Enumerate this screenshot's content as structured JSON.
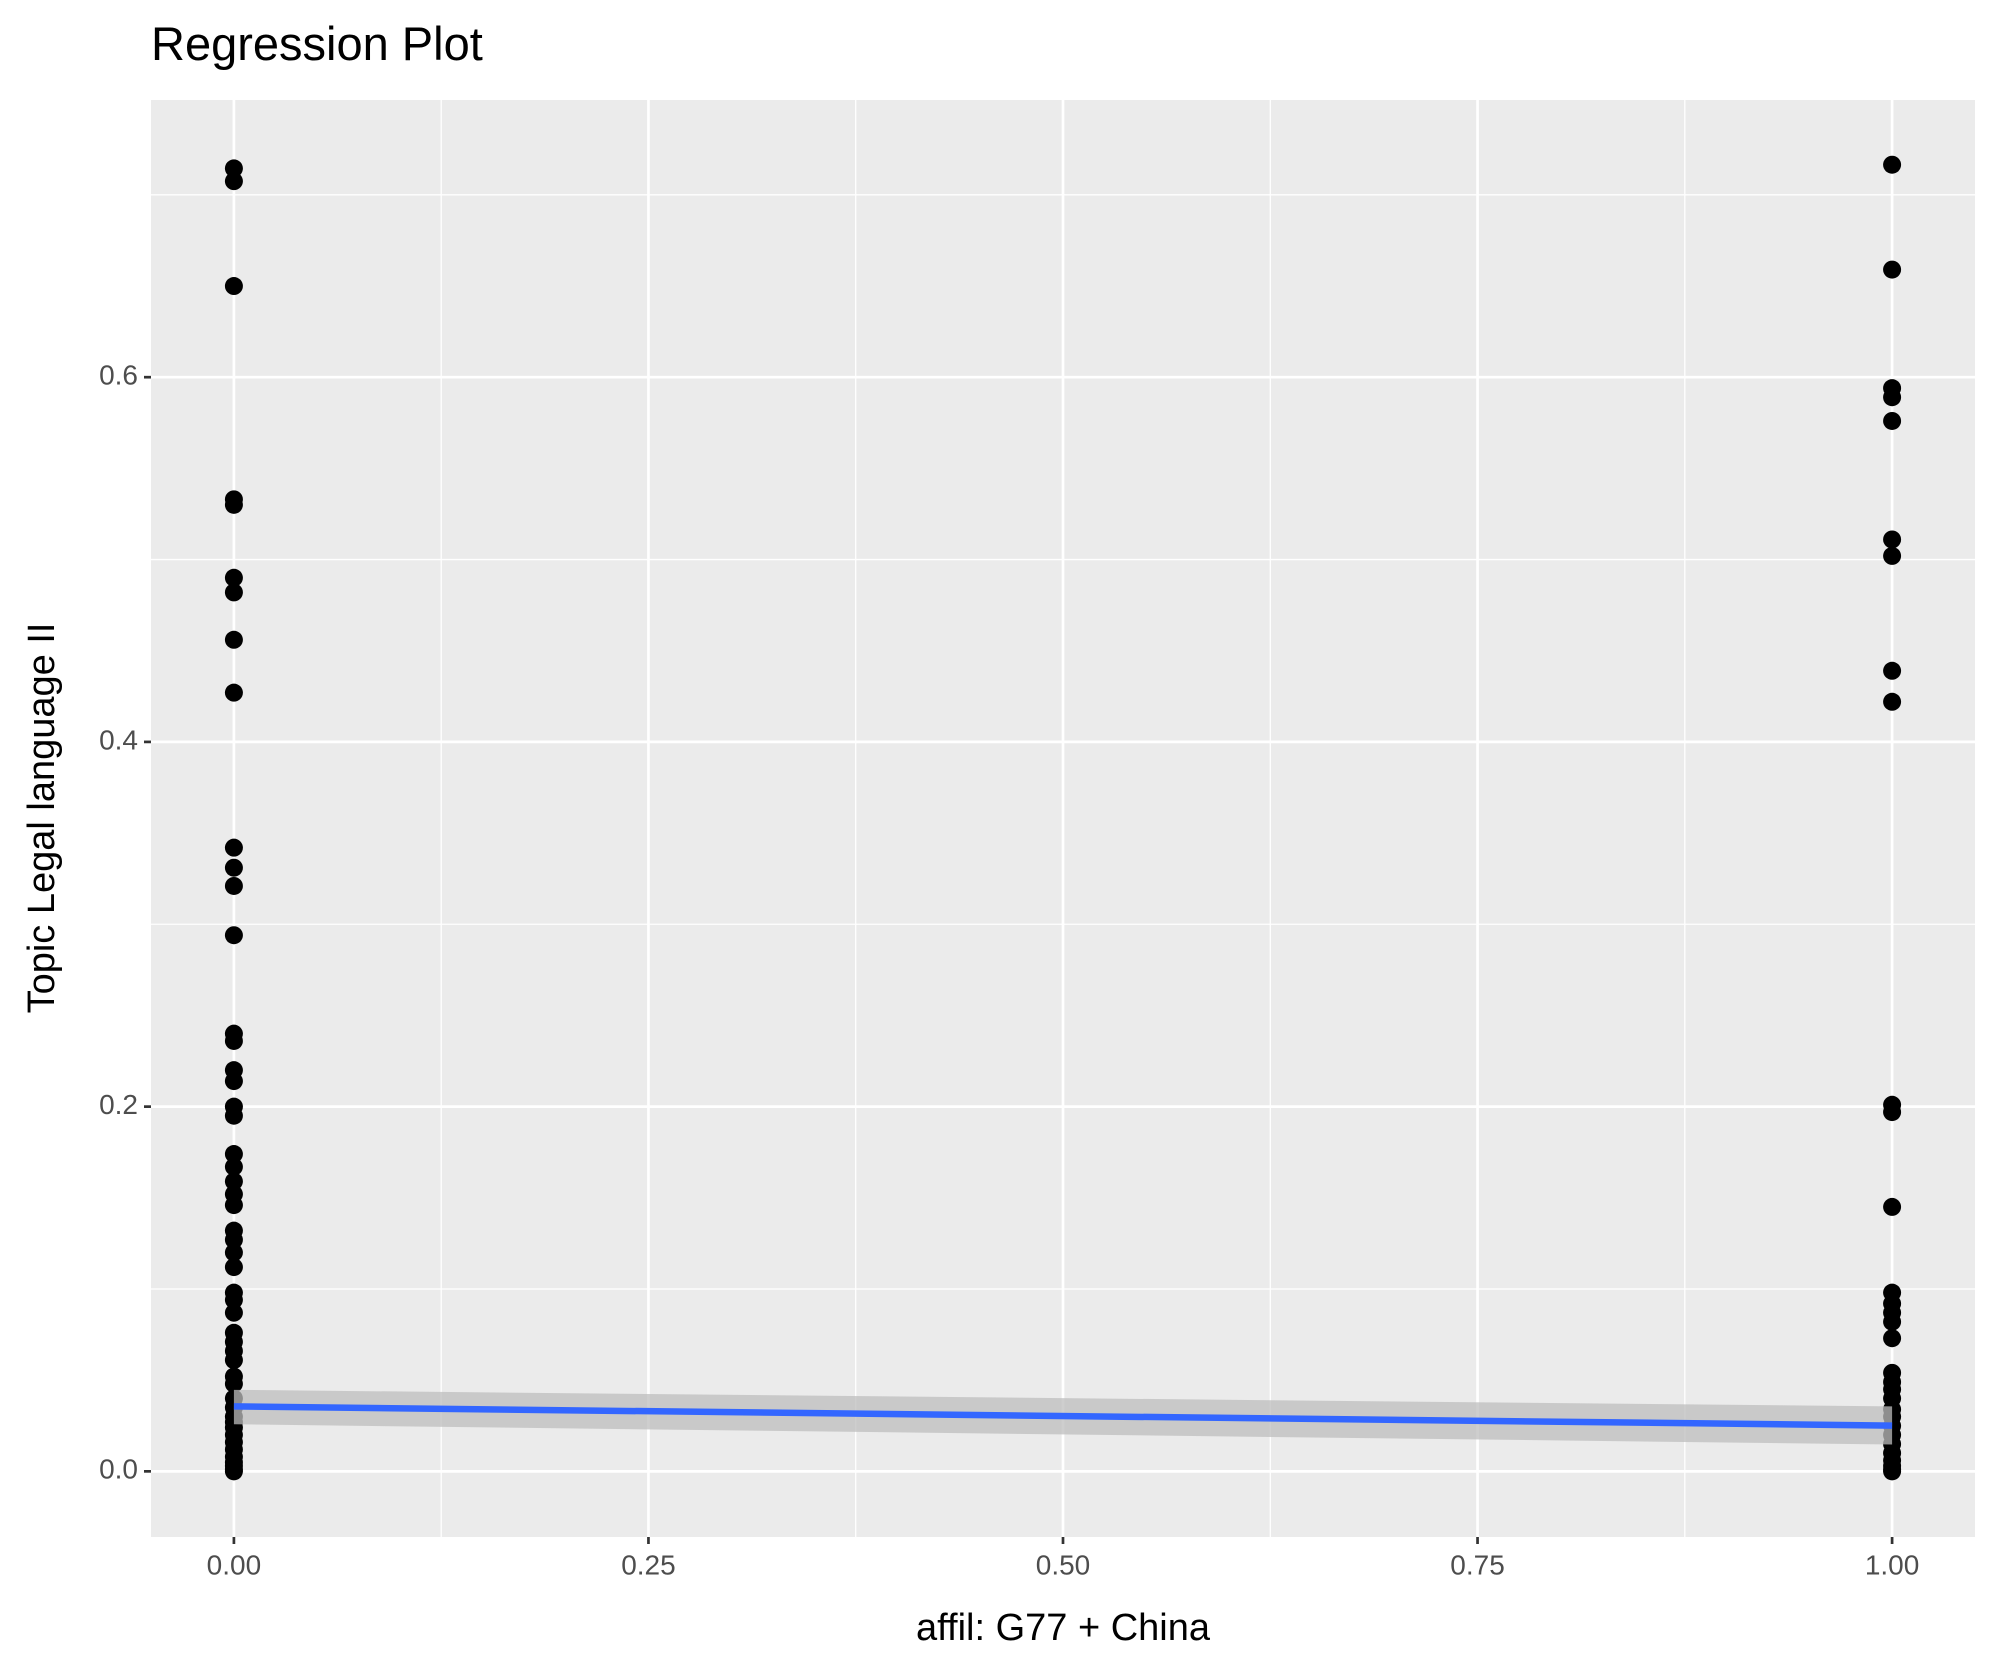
{
  "chart_data": {
    "type": "scatter",
    "title": "Regression Plot",
    "x_label": "affil: G77 + China",
    "y_label": "Topic Legal language II",
    "xlim": [
      -0.05,
      1.05
    ],
    "ylim": [
      -0.036,
      0.752
    ],
    "xticks": [
      {
        "value": 0,
        "label": "0.00"
      },
      {
        "value": 0.25,
        "label": "0.25"
      },
      {
        "value": 0.5,
        "label": "0.50"
      },
      {
        "value": 0.75,
        "label": "0.75"
      },
      {
        "value": 1,
        "label": "1.00"
      }
    ],
    "yticks": [
      {
        "value": 0,
        "label": "0.0"
      },
      0.2,
      0.4,
      0.6
    ],
    "minor_xticks": [
      0.125,
      0.375,
      0.625,
      0.875
    ],
    "minor_yticks": [
      0.1,
      0.3,
      0.5,
      0.7
    ],
    "grid": true,
    "panel_color": "#ebebeb",
    "points": {
      "color": "#000000",
      "x": [
        0,
        0,
        0,
        0,
        0,
        0,
        0,
        0,
        0,
        0,
        0,
        0,
        0,
        0,
        0,
        0,
        0,
        0,
        0,
        0,
        0,
        0,
        0,
        0,
        0,
        0,
        0,
        0,
        0,
        0,
        0,
        0,
        0,
        0,
        0,
        0,
        0,
        0,
        0,
        0,
        0,
        0,
        0,
        0,
        0,
        0,
        0,
        0,
        0,
        0,
        1,
        1,
        1,
        1,
        1,
        1,
        1,
        1,
        1,
        1,
        1,
        1,
        1,
        1,
        1,
        1,
        1,
        1,
        1,
        1,
        1,
        1,
        1,
        1,
        1,
        1,
        1,
        1,
        1,
        1,
        1
      ],
      "y": [
        0.7145,
        0.7075,
        0.65,
        0.533,
        0.53,
        0.49,
        0.482,
        0.456,
        0.427,
        0.342,
        0.331,
        0.321,
        0.294,
        0.24,
        0.236,
        0.22,
        0.214,
        0.2,
        0.195,
        0.174,
        0.167,
        0.159,
        0.152,
        0.146,
        0.132,
        0.127,
        0.12,
        0.112,
        0.098,
        0.094,
        0.087,
        0.076,
        0.071,
        0.066,
        0.061,
        0.052,
        0.048,
        0.04,
        0.035,
        0.03,
        0.027,
        0.024,
        0.02,
        0.016,
        0.012,
        0.008,
        0.005,
        0.003,
        0.001,
        0,
        0.7165,
        0.659,
        0.594,
        0.589,
        0.576,
        0.511,
        0.502,
        0.439,
        0.422,
        0.201,
        0.197,
        0.145,
        0.098,
        0.092,
        0.087,
        0.082,
        0.073,
        0.054,
        0.049,
        0.045,
        0.04,
        0.034,
        0.03,
        0.025,
        0.02,
        0.015,
        0.01,
        0.006,
        0.003,
        0.001,
        0
      ]
    },
    "fit": {
      "color": "#3366ff",
      "band_color": "#bdbdbd",
      "x": [
        0,
        1
      ],
      "y": [
        0.0356,
        0.0251
      ],
      "lower": [
        0.0258,
        0.0147
      ],
      "upper": [
        0.0447,
        0.0356
      ]
    }
  }
}
